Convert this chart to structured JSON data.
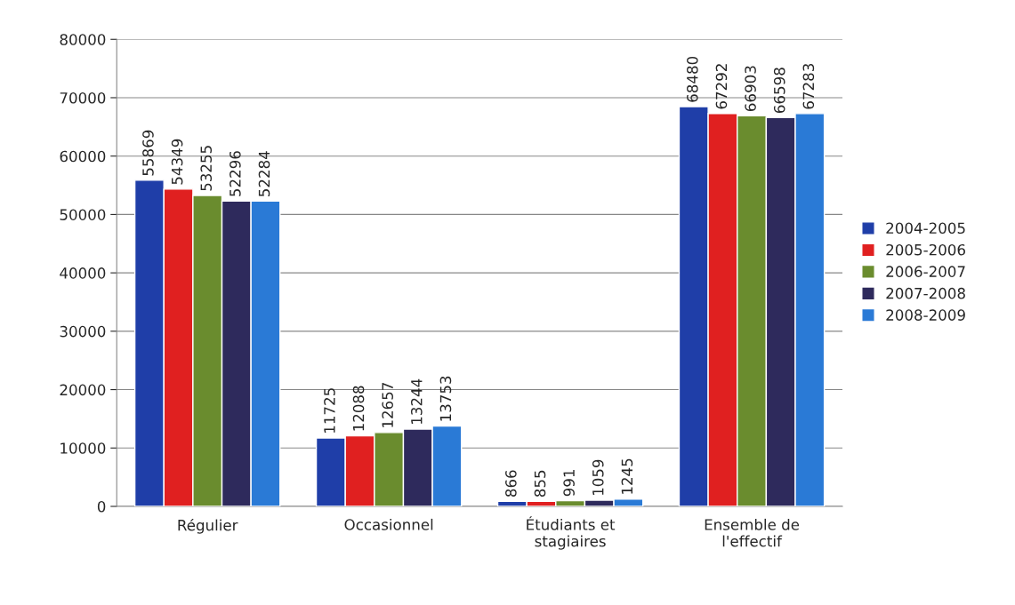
{
  "chart_data": {
    "type": "bar",
    "categories": [
      "Régulier",
      "Occasionnel",
      "Étudiants et\nstagiaires",
      "Ensemble de\nl'effectif"
    ],
    "series": [
      {
        "name": "2004-2005",
        "color": "#1f3ea8",
        "values": [
          55869,
          11725,
          866,
          68480
        ]
      },
      {
        "name": "2005-2006",
        "color": "#e02020",
        "values": [
          54349,
          12088,
          855,
          67292
        ]
      },
      {
        "name": "2006-2007",
        "color": "#6a8c2e",
        "values": [
          53255,
          12657,
          991,
          66903
        ]
      },
      {
        "name": "2007-2008",
        "color": "#2e2a5c",
        "values": [
          52296,
          13244,
          1059,
          66598
        ]
      },
      {
        "name": "2008-2009",
        "color": "#2a7ad6",
        "values": [
          52284,
          13753,
          1245,
          67283
        ]
      }
    ],
    "ylim": [
      0,
      80000
    ],
    "yticks": [
      0,
      10000,
      20000,
      30000,
      40000,
      50000,
      60000,
      70000,
      80000
    ],
    "grid": "y",
    "legend": "right",
    "data_labels": true
  }
}
